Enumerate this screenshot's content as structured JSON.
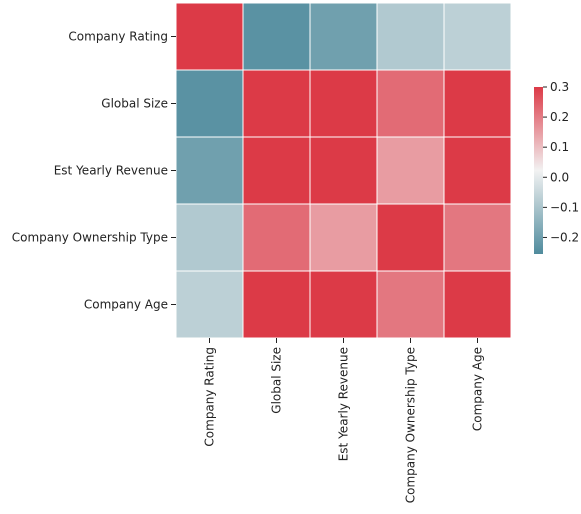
{
  "chart_data": {
    "type": "heatmap",
    "title": "",
    "xlabel": "",
    "ylabel": "",
    "x_categories": [
      "Company Rating",
      "Global Size",
      "Est Yearly Revenue",
      "Company Ownership Type",
      "Company Age"
    ],
    "y_categories": [
      "Company Rating",
      "Global Size",
      "Est Yearly Revenue",
      "Company Ownership Type",
      "Company Age"
    ],
    "values": [
      [
        1.0,
        -0.28,
        -0.24,
        -0.12,
        -0.1
      ],
      [
        -0.28,
        1.0,
        0.7,
        0.22,
        0.7
      ],
      [
        -0.24,
        0.7,
        1.0,
        0.14,
        0.66
      ],
      [
        -0.12,
        0.22,
        0.14,
        1.0,
        0.2
      ],
      [
        -0.1,
        0.7,
        0.66,
        0.2,
        1.0
      ]
    ],
    "vmin": -0.3,
    "vmax": 0.3,
    "colormap": {
      "low": "#4f8b9d",
      "mid": "#f2f2f2",
      "high": "#dc3a47"
    },
    "colorbar": {
      "ticks": [
        0.3,
        0.2,
        0.1,
        0.0,
        -0.1,
        -0.2
      ],
      "tick_labels": [
        "0.3",
        "0.2",
        "0.1",
        "0.0",
        "−0.1",
        "−0.2"
      ]
    },
    "grid": false
  }
}
